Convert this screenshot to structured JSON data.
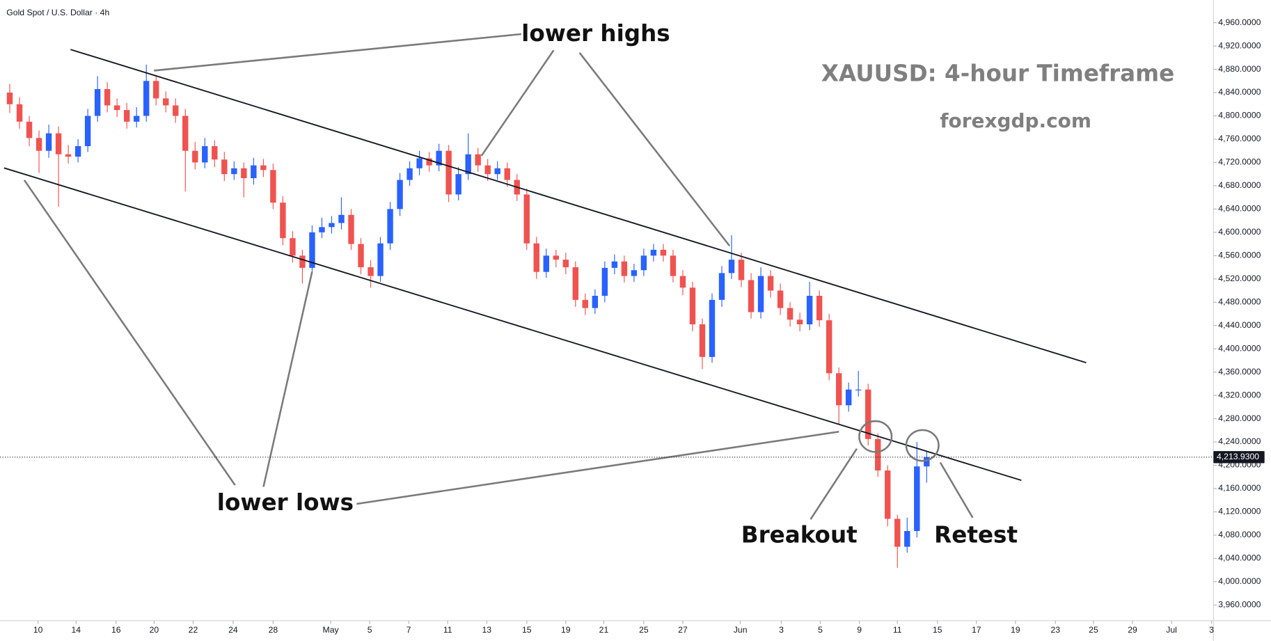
{
  "chart_data": {
    "type": "candlestick",
    "title": "Gold Spot / U.S. Dollar · 4h",
    "annotations": [
      "lower highs",
      "lower lows",
      "XAUUSD: 4-hour Timeframe",
      "forexgdp.com",
      "Breakout",
      "Retest"
    ],
    "up_color": "#2962ff",
    "down_color": "#ef5350",
    "current_price": {
      "value": 4213.93,
      "label": "4,213.9300"
    },
    "x": [
      0,
      1,
      2,
      3,
      4,
      5,
      6,
      7,
      8,
      9,
      10,
      11,
      12,
      13,
      14,
      15,
      16,
      17,
      18,
      19,
      20,
      21,
      22,
      23,
      24,
      25,
      26,
      27,
      28,
      29,
      30,
      31,
      32,
      33,
      34,
      35,
      36,
      37,
      38,
      39,
      40,
      41,
      42,
      43,
      44,
      45,
      46,
      47,
      48,
      49,
      50,
      51,
      52,
      53,
      54,
      55,
      56,
      57,
      58,
      59,
      60,
      61,
      62,
      63,
      64,
      65,
      66,
      67,
      68,
      69,
      70,
      71,
      72,
      73,
      74,
      75,
      76,
      77,
      78,
      79,
      80,
      81,
      82,
      83,
      84,
      85,
      86,
      87,
      88,
      89,
      90,
      91,
      92,
      93,
      94
    ],
    "open": [
      4840,
      4820,
      4790,
      4762,
      4740,
      4770,
      4734,
      4730,
      4748,
      4800,
      4846,
      4818,
      4810,
      4790,
      4800,
      4860,
      4830,
      4818,
      4800,
      4740,
      4720,
      4748,
      4725,
      4700,
      4710,
      4693,
      4715,
      4707,
      4651,
      4590,
      4560,
      4539,
      4600,
      4609,
      4616,
      4630,
      4580,
      4540,
      4525,
      4581,
      4640,
      4690,
      4710,
      4727,
      4715,
      4740,
      4665,
      4700,
      4734,
      4715,
      4700,
      4710,
      4690,
      4665,
      4581,
      4532,
      4560,
      4553,
      4540,
      4484,
      4470,
      4491,
      4539,
      4550,
      4525,
      4535,
      4560,
      4570,
      4560,
      4525,
      4505,
      4442,
      4386,
      4484,
      4530,
      4553,
      4518,
      4463,
      4525,
      4500,
      4470,
      4450,
      4442,
      4491,
      4449,
      4358,
      4303,
      4330,
      4330,
      4245,
      4191,
      4108,
      4060,
      4087,
      4198
    ],
    "high": [
      4855,
      4832,
      4800,
      4775,
      4785,
      4782,
      4750,
      4760,
      4812,
      4868,
      4858,
      4830,
      4822,
      4815,
      4888,
      4870,
      4842,
      4830,
      4812,
      4755,
      4762,
      4758,
      4738,
      4722,
      4720,
      4728,
      4726,
      4718,
      4662,
      4602,
      4570,
      4612,
      4625,
      4628,
      4660,
      4640,
      4590,
      4552,
      4592,
      4652,
      4702,
      4722,
      4740,
      4738,
      4752,
      4750,
      4712,
      4770,
      4745,
      4726,
      4722,
      4720,
      4700,
      4675,
      4592,
      4572,
      4570,
      4565,
      4550,
      4495,
      4502,
      4550,
      4562,
      4560,
      4546,
      4572,
      4580,
      4580,
      4570,
      4535,
      4515,
      4452,
      4495,
      4542,
      4595,
      4565,
      4530,
      4540,
      4535,
      4512,
      4480,
      4462,
      4515,
      4500,
      4460,
      4368,
      4342,
      4362,
      4340,
      4255,
      4200,
      4115,
      4110,
      4240,
      4225
    ],
    "low": [
      4805,
      4778,
      4748,
      4702,
      4728,
      4644,
      4718,
      4720,
      4738,
      4790,
      4806,
      4798,
      4778,
      4780,
      4790,
      4818,
      4806,
      4788,
      4670,
      4708,
      4710,
      4712,
      4688,
      4690,
      4660,
      4682,
      4695,
      4640,
      4578,
      4548,
      4512,
      4528,
      4590,
      4598,
      4605,
      4570,
      4528,
      4505,
      4515,
      4570,
      4628,
      4680,
      4698,
      4704,
      4705,
      4652,
      4655,
      4690,
      4704,
      4688,
      4690,
      4678,
      4654,
      4570,
      4520,
      4522,
      4540,
      4528,
      4472,
      4458,
      4460,
      4480,
      4528,
      4514,
      4515,
      4525,
      4550,
      4550,
      4514,
      4492,
      4430,
      4365,
      4376,
      4472,
      4520,
      4506,
      4452,
      4452,
      4488,
      4458,
      4438,
      4430,
      4432,
      4438,
      4346,
      4270,
      4292,
      4318,
      4234,
      4180,
      4095,
      4024,
      4050,
      4076,
      4170
    ],
    "close": [
      4820,
      4790,
      4762,
      4740,
      4770,
      4734,
      4730,
      4748,
      4800,
      4846,
      4818,
      4810,
      4790,
      4800,
      4860,
      4830,
      4818,
      4800,
      4740,
      4720,
      4748,
      4725,
      4700,
      4710,
      4693,
      4715,
      4707,
      4651,
      4590,
      4560,
      4539,
      4600,
      4609,
      4616,
      4630,
      4580,
      4540,
      4525,
      4581,
      4640,
      4690,
      4710,
      4727,
      4715,
      4740,
      4665,
      4700,
      4734,
      4715,
      4700,
      4710,
      4690,
      4665,
      4581,
      4532,
      4560,
      4553,
      4540,
      4484,
      4470,
      4491,
      4539,
      4550,
      4525,
      4535,
      4560,
      4570,
      4560,
      4525,
      4505,
      4442,
      4386,
      4484,
      4530,
      4553,
      4518,
      4463,
      4525,
      4500,
      4470,
      4450,
      4442,
      4491,
      4449,
      4358,
      4303,
      4330,
      4330,
      4245,
      4191,
      4108,
      4060,
      4087,
      4198,
      4213.93
    ],
    "xlim": [
      -1,
      123.4
    ],
    "xticks": [
      {
        "value": 2.9,
        "label": "10"
      },
      {
        "value": 6.8,
        "label": "14"
      },
      {
        "value": 10.9,
        "label": "16"
      },
      {
        "value": 14.8,
        "label": "20"
      },
      {
        "value": 18.8,
        "label": "22"
      },
      {
        "value": 22.9,
        "label": "24"
      },
      {
        "value": 27.0,
        "label": "28"
      },
      {
        "value": 32.9,
        "label": "May"
      },
      {
        "value": 36.9,
        "label": "5"
      },
      {
        "value": 40.9,
        "label": "7"
      },
      {
        "value": 44.9,
        "label": "11"
      },
      {
        "value": 48.9,
        "label": "13"
      },
      {
        "value": 53.0,
        "label": "15"
      },
      {
        "value": 57.0,
        "label": "19"
      },
      {
        "value": 60.9,
        "label": "21"
      },
      {
        "value": 65.0,
        "label": "25"
      },
      {
        "value": 69.0,
        "label": "27"
      },
      {
        "value": 74.9,
        "label": "Jun"
      },
      {
        "value": 79.1,
        "label": "3"
      },
      {
        "value": 83.1,
        "label": "5"
      },
      {
        "value": 87.1,
        "label": "9"
      },
      {
        "value": 91.0,
        "label": "11"
      },
      {
        "value": 95.1,
        "label": "15"
      },
      {
        "value": 99.1,
        "label": "17"
      },
      {
        "value": 103.1,
        "label": "19"
      },
      {
        "value": 107.2,
        "label": "23"
      },
      {
        "value": 111.1,
        "label": "25"
      },
      {
        "value": 115.1,
        "label": "29"
      },
      {
        "value": 119.1,
        "label": "Jul"
      },
      {
        "value": 123.2,
        "label": "3"
      }
    ],
    "ylim": [
      3933,
      4999
    ],
    "yticks": [
      {
        "value": 3960,
        "label": "3,960.0000"
      },
      {
        "value": 4000,
        "label": "4,000.0000"
      },
      {
        "value": 4040,
        "label": "4,040.0000"
      },
      {
        "value": 4080,
        "label": "4,080.0000"
      },
      {
        "value": 4120,
        "label": "4,120.0000"
      },
      {
        "value": 4160,
        "label": "4,160.0000"
      },
      {
        "value": 4200,
        "label": "4,200.0000"
      },
      {
        "value": 4240,
        "label": "4,240.0000"
      },
      {
        "value": 4280,
        "label": "4,280.0000"
      },
      {
        "value": 4320,
        "label": "4,320.0000"
      },
      {
        "value": 4360,
        "label": "4,360.0000"
      },
      {
        "value": 4400,
        "label": "4,400.0000"
      },
      {
        "value": 4440,
        "label": "4,440.0000"
      },
      {
        "value": 4480,
        "label": "4,480.0000"
      },
      {
        "value": 4520,
        "label": "4,520.0000"
      },
      {
        "value": 4560,
        "label": "4,560.0000"
      },
      {
        "value": 4600,
        "label": "4,600.0000"
      },
      {
        "value": 4640,
        "label": "4,640.0000"
      },
      {
        "value": 4680,
        "label": "4,680.0000"
      },
      {
        "value": 4720,
        "label": "4,720.0000"
      },
      {
        "value": 4760,
        "label": "4,760.0000"
      },
      {
        "value": 4800,
        "label": "4,800.0000"
      },
      {
        "value": 4840,
        "label": "4,840.0000"
      },
      {
        "value": 4880,
        "label": "4,880.0000"
      },
      {
        "value": 4920,
        "label": "4,920.0000"
      },
      {
        "value": 4960,
        "label": "4,960.0000"
      }
    ]
  }
}
